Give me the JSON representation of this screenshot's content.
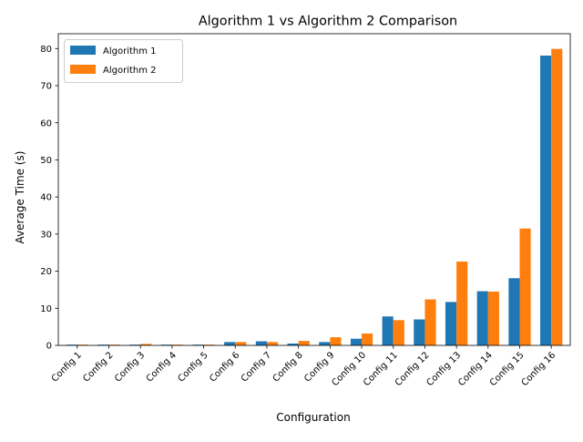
{
  "chart_data": {
    "type": "bar",
    "title": "Algorithm 1 vs Algorithm 2 Comparison",
    "xlabel": "Configuration",
    "ylabel": "Average Time (s)",
    "ylim": [
      0,
      84
    ],
    "yticks": [
      0,
      10,
      20,
      30,
      40,
      50,
      60,
      70,
      80
    ],
    "grid": false,
    "legend_position": "top-left",
    "categories": [
      "Config 1",
      "Config 2",
      "Config 3",
      "Config 4",
      "Config 5",
      "Config 6",
      "Config 7",
      "Config 8",
      "Config 9",
      "Config 10",
      "Config 11",
      "Config 12",
      "Config 13",
      "Config 14",
      "Config 15",
      "Config 16"
    ],
    "series": [
      {
        "name": "Algorithm 1",
        "color": "#1f77b4",
        "values": [
          0.2,
          0.2,
          0.2,
          0.2,
          0.2,
          0.9,
          1.1,
          0.5,
          0.9,
          1.8,
          7.8,
          7.0,
          11.7,
          14.6,
          18.1,
          78.1
        ]
      },
      {
        "name": "Algorithm 2",
        "color": "#ff7f0e",
        "values": [
          0.2,
          0.2,
          0.4,
          0.2,
          0.2,
          0.9,
          0.9,
          1.2,
          2.2,
          3.2,
          6.8,
          12.4,
          22.6,
          14.5,
          31.5,
          79.9
        ]
      }
    ]
  }
}
